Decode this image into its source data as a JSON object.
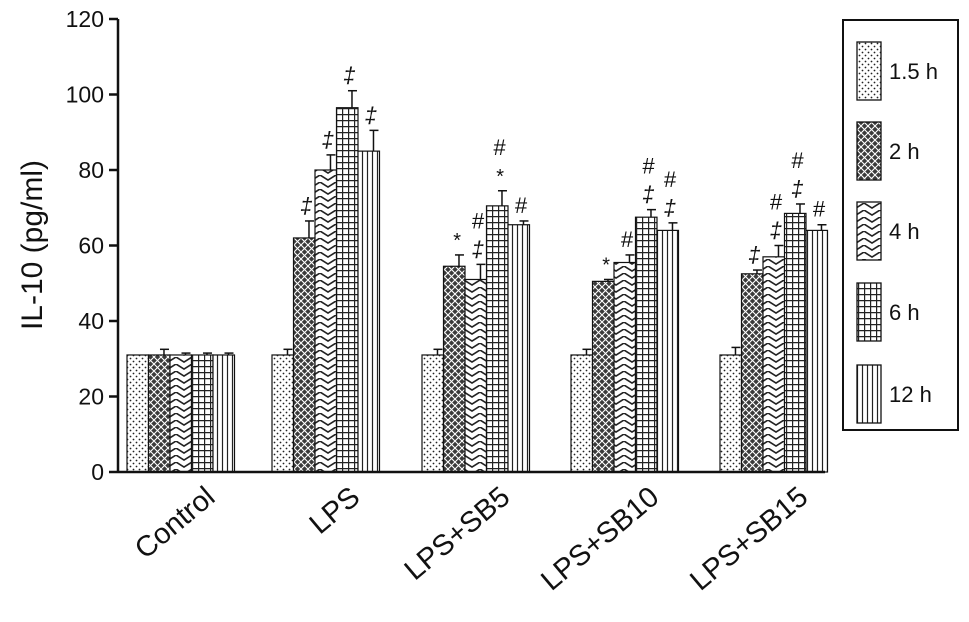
{
  "chart_data": {
    "type": "bar",
    "title": "",
    "xlabel": "",
    "ylabel": "IL-10 (pg/ml)",
    "ylim": [
      0,
      120
    ],
    "yticks": [
      0,
      20,
      40,
      60,
      80,
      100,
      120
    ],
    "grid": false,
    "legend_position": "right",
    "categories": [
      "Control",
      "LPS",
      "LPS+SB5",
      "LPS+SB10",
      "LPS+SB15"
    ],
    "series": [
      {
        "name": "1.5 h",
        "pattern": "dots",
        "values": [
          31,
          31,
          31,
          31,
          31
        ],
        "errors": [
          0,
          1.5,
          1.5,
          1.5,
          2
        ],
        "annotations": [
          "",
          "",
          "",
          "",
          ""
        ]
      },
      {
        "name": "2 h",
        "pattern": "crosshatch",
        "values": [
          31,
          62,
          54.5,
          50.5,
          52.5
        ],
        "errors": [
          1.5,
          4.5,
          3,
          0.5,
          1
        ],
        "annotations": [
          "",
          "‡",
          "*",
          "*",
          "‡"
        ]
      },
      {
        "name": "4 h",
        "pattern": "zigzag",
        "values": [
          31,
          80,
          51,
          55.5,
          57
        ],
        "errors": [
          0.5,
          4,
          4,
          2,
          3
        ],
        "annotations": [
          "",
          "‡",
          "#\n‡",
          "#",
          "#\n‡"
        ]
      },
      {
        "name": "6 h",
        "pattern": "grid",
        "values": [
          31,
          96.5,
          70.5,
          67.5,
          68.5
        ],
        "errors": [
          0.5,
          4.5,
          4,
          2,
          2.5
        ],
        "annotations": [
          "",
          "‡",
          "#\n*",
          "#\n‡",
          "#\n‡"
        ]
      },
      {
        "name": "12 h",
        "pattern": "vlines",
        "values": [
          31,
          85,
          65.5,
          64,
          64
        ],
        "errors": [
          0.5,
          5.5,
          1,
          2,
          1.5
        ],
        "annotations": [
          "",
          "‡",
          "#",
          "#\n‡",
          "#"
        ]
      }
    ],
    "colors": {
      "stroke": "#111111",
      "fill": "#ffffff",
      "dark": "#222222"
    }
  }
}
